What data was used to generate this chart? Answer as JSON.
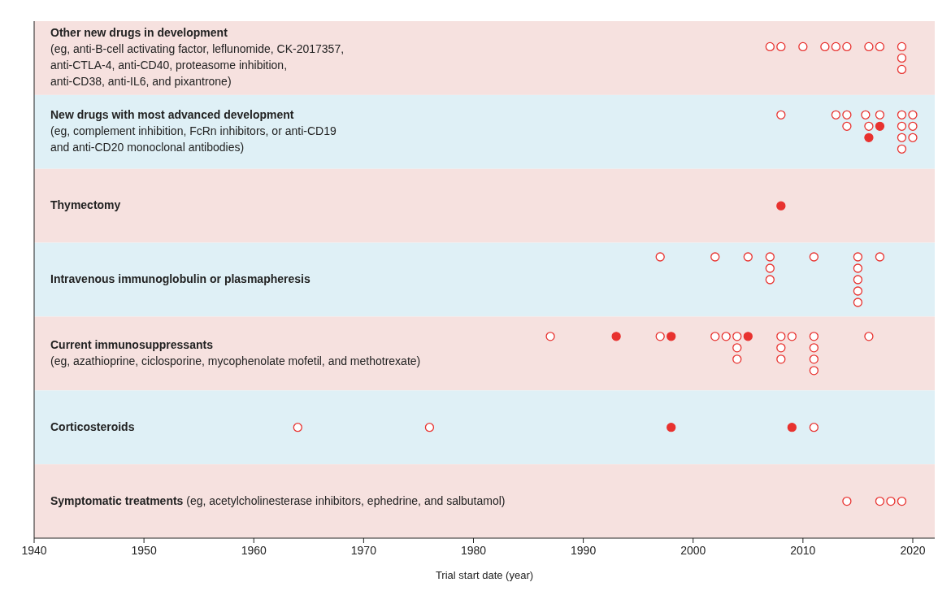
{
  "chart_data": {
    "type": "scatter",
    "orientation": "horizontal",
    "xlabel": "Trial start date (year)",
    "xlim": [
      1940,
      2022
    ],
    "xticks": [
      1940,
      1950,
      1960,
      1970,
      1980,
      1990,
      2000,
      2010,
      2020
    ],
    "grid": false,
    "tick_labels": "x",
    "marker": "circle",
    "categories": [
      "Other new drugs in development\n(eg, anti-B-cell activating factor, leflunomide, CK-2017357,\nanti-CTLA-4, anti-CD40, proteasome inhibition,\nanti-CD38, anti-IL6, and pixantrone)",
      "New drugs with most advanced development\n(eg, complement inhibition, FcRn inhibitors, or anti-CD19\nand anti-CD20 monoclonal antibodies)",
      "Thymectomy",
      "Intravenous immunoglobulin or plasmapheresis",
      "Current immunosuppressants\n(eg, azathioprine, ciclosporine, mycophenolate mofetil, and methotrexate)",
      "Corticosteroids",
      "Symptomatic treatments (eg, acetylcholinesterase inhibitors, ephedrine, and salbutamol)"
    ],
    "bands": [
      {
        "axis": "y",
        "from": "Other new drugs in development\n(eg, anti-B-cell activating factor, leflunomide, CK-2017357,\nanti-CTLA-4, anti-CD40, proteasome inhibition,\nanti-CD38, anti-IL6, and pixantrone)",
        "to": "Other new drugs in development\n(eg, anti-B-cell activating factor, leflunomide, CK-2017357,\nanti-CTLA-4, anti-CD40, proteasome inhibition,\nanti-CD38, anti-IL6, and pixantrone)",
        "color": "#f6e1df"
      },
      {
        "axis": "y",
        "from": "New drugs with most advanced development\n(eg, complement inhibition, FcRn inhibitors, or anti-CD19\nand anti-CD20 monoclonal antibodies)",
        "to": "New drugs with most advanced development\n(eg, complement inhibition, FcRn inhibitors, or anti-CD19\nand anti-CD20 monoclonal antibodies)",
        "color": "#dff0f6"
      },
      {
        "axis": "y",
        "from": "Thymectomy",
        "to": "Thymectomy",
        "color": "#f6e1df"
      },
      {
        "axis": "y",
        "from": "Intravenous immunoglobulin or plasmapheresis",
        "to": "Intravenous immunoglobulin or plasmapheresis",
        "color": "#dff0f6"
      },
      {
        "axis": "y",
        "from": "Current immunosuppressants\n(eg, azathioprine, ciclosporine, mycophenolate mofetil, and methotrexate)",
        "to": "Current immunosuppressants\n(eg, azathioprine, ciclosporine, mycophenolate mofetil, and methotrexate)",
        "color": "#f6e1df"
      },
      {
        "axis": "y",
        "from": "Corticosteroids",
        "to": "Corticosteroids",
        "color": "#dff0f6"
      },
      {
        "axis": "y",
        "from": "Symptomatic treatments (eg, acetylcholinesterase inhibitors, ephedrine, and salbutamol)",
        "to": "Symptomatic treatments (eg, acetylcholinesterase inhibitors, ephedrine, and salbutamol)",
        "color": "#f6e1df"
      }
    ],
    "series": [
      {
        "color": "#e8322f",
        "x": [
          "Other new drugs in development\n(eg, anti-B-cell activating factor, leflunomide, CK-2017357,\nanti-CTLA-4, anti-CD40, proteasome inhibition,\nanti-CD38, anti-IL6, and pixantrone)",
          "Other new drugs in development\n(eg, anti-B-cell activating factor, leflunomide, CK-2017357,\nanti-CTLA-4, anti-CD40, proteasome inhibition,\nanti-CD38, anti-IL6, and pixantrone)",
          "Other new drugs in development\n(eg, anti-B-cell activating factor, leflunomide, CK-2017357,\nanti-CTLA-4, anti-CD40, proteasome inhibition,\nanti-CD38, anti-IL6, and pixantrone)",
          "Other new drugs in development\n(eg, anti-B-cell activating factor, leflunomide, CK-2017357,\nanti-CTLA-4, anti-CD40, proteasome inhibition,\nanti-CD38, anti-IL6, and pixantrone)",
          "Other new drugs in development\n(eg, anti-B-cell activating factor, leflunomide, CK-2017357,\nanti-CTLA-4, anti-CD40, proteasome inhibition,\nanti-CD38, anti-IL6, and pixantrone)",
          "Other new drugs in development\n(eg, anti-B-cell activating factor, leflunomide, CK-2017357,\nanti-CTLA-4, anti-CD40, proteasome inhibition,\nanti-CD38, anti-IL6, and pixantrone)",
          "Other new drugs in development\n(eg, anti-B-cell activating factor, leflunomide, CK-2017357,\nanti-CTLA-4, anti-CD40, proteasome inhibition,\nanti-CD38, anti-IL6, and pixantrone)",
          "Other new drugs in development\n(eg, anti-B-cell activating factor, leflunomide, CK-2017357,\nanti-CTLA-4, anti-CD40, proteasome inhibition,\nanti-CD38, anti-IL6, and pixantrone)",
          "Other new drugs in development\n(eg, anti-B-cell activating factor, leflunomide, CK-2017357,\nanti-CTLA-4, anti-CD40, proteasome inhibition,\nanti-CD38, anti-IL6, and pixantrone)",
          "Other new drugs in development\n(eg, anti-B-cell activating factor, leflunomide, CK-2017357,\nanti-CTLA-4, anti-CD40, proteasome inhibition,\nanti-CD38, anti-IL6, and pixantrone)",
          "Other new drugs in development\n(eg, anti-B-cell activating factor, leflunomide, CK-2017357,\nanti-CTLA-4, anti-CD40, proteasome inhibition,\nanti-CD38, anti-IL6, and pixantrone)",
          "New drugs with most advanced development\n(eg, complement inhibition, FcRn inhibitors, or anti-CD19\nand anti-CD20 monoclonal antibodies)",
          "New drugs with most advanced development\n(eg, complement inhibition, FcRn inhibitors, or anti-CD19\nand anti-CD20 monoclonal antibodies)",
          "New drugs with most advanced development\n(eg, complement inhibition, FcRn inhibitors, or anti-CD19\nand anti-CD20 monoclonal antibodies)",
          "New drugs with most advanced development\n(eg, complement inhibition, FcRn inhibitors, or anti-CD19\nand anti-CD20 monoclonal antibodies)",
          "New drugs with most advanced development\n(eg, complement inhibition, FcRn inhibitors, or anti-CD19\nand anti-CD20 monoclonal antibodies)",
          "New drugs with most advanced development\n(eg, complement inhibition, FcRn inhibitors, or anti-CD19\nand anti-CD20 monoclonal antibodies)",
          "New drugs with most advanced development\n(eg, complement inhibition, FcRn inhibitors, or anti-CD19\nand anti-CD20 monoclonal antibodies)",
          "New drugs with most advanced development\n(eg, complement inhibition, FcRn inhibitors, or anti-CD19\nand anti-CD20 monoclonal antibodies)",
          "New drugs with most advanced development\n(eg, complement inhibition, FcRn inhibitors, or anti-CD19\nand anti-CD20 monoclonal antibodies)",
          "New drugs with most advanced development\n(eg, complement inhibition, FcRn inhibitors, or anti-CD19\nand anti-CD20 monoclonal antibodies)",
          "New drugs with most advanced development\n(eg, complement inhibition, FcRn inhibitors, or anti-CD19\nand anti-CD20 monoclonal antibodies)",
          "New drugs with most advanced development\n(eg, complement inhibition, FcRn inhibitors, or anti-CD19\nand anti-CD20 monoclonal antibodies)",
          "New drugs with most advanced development\n(eg, complement inhibition, FcRn inhibitors, or anti-CD19\nand anti-CD20 monoclonal antibodies)",
          "New drugs with most advanced development\n(eg, complement inhibition, FcRn inhibitors, or anti-CD19\nand anti-CD20 monoclonal antibodies)",
          "New drugs with most advanced development\n(eg, complement inhibition, FcRn inhibitors, or anti-CD19\nand anti-CD20 monoclonal antibodies)",
          "New drugs with most advanced development\n(eg, complement inhibition, FcRn inhibitors, or anti-CD19\nand anti-CD20 monoclonal antibodies)",
          "Thymectomy",
          "Intravenous immunoglobulin or plasmapheresis",
          "Intravenous immunoglobulin or plasmapheresis",
          "Intravenous immunoglobulin or plasmapheresis",
          "Intravenous immunoglobulin or plasmapheresis",
          "Intravenous immunoglobulin or plasmapheresis",
          "Intravenous immunoglobulin or plasmapheresis",
          "Intravenous immunoglobulin or plasmapheresis",
          "Intravenous immunoglobulin or plasmapheresis",
          "Intravenous immunoglobulin or plasmapheresis",
          "Intravenous immunoglobulin or plasmapheresis",
          "Intravenous immunoglobulin or plasmapheresis",
          "Intravenous immunoglobulin or plasmapheresis",
          "Intravenous immunoglobulin or plasmapheresis",
          "Current immunosuppressants\n(eg, azathioprine, ciclosporine, mycophenolate mofetil, and methotrexate)",
          "Current immunosuppressants\n(eg, azathioprine, ciclosporine, mycophenolate mofetil, and methotrexate)",
          "Current immunosuppressants\n(eg, azathioprine, ciclosporine, mycophenolate mofetil, and methotrexate)",
          "Current immunosuppressants\n(eg, azathioprine, ciclosporine, mycophenolate mofetil, and methotrexate)",
          "Current immunosuppressants\n(eg, azathioprine, ciclosporine, mycophenolate mofetil, and methotrexate)",
          "Current immunosuppressants\n(eg, azathioprine, ciclosporine, mycophenolate mofetil, and methotrexate)",
          "Current immunosuppressants\n(eg, azathioprine, ciclosporine, mycophenolate mofetil, and methotrexate)",
          "Current immunosuppressants\n(eg, azathioprine, ciclosporine, mycophenolate mofetil, and methotrexate)",
          "Current immunosuppressants\n(eg, azathioprine, ciclosporine, mycophenolate mofetil, and methotrexate)",
          "Current immunosuppressants\n(eg, azathioprine, ciclosporine, mycophenolate mofetil, and methotrexate)",
          "Current immunosuppressants\n(eg, azathioprine, ciclosporine, mycophenolate mofetil, and methotrexate)",
          "Current immunosuppressants\n(eg, azathioprine, ciclosporine, mycophenolate mofetil, and methotrexate)",
          "Current immunosuppressants\n(eg, azathioprine, ciclosporine, mycophenolate mofetil, and methotrexate)",
          "Current immunosuppressants\n(eg, azathioprine, ciclosporine, mycophenolate mofetil, and methotrexate)",
          "Current immunosuppressants\n(eg, azathioprine, ciclosporine, mycophenolate mofetil, and methotrexate)",
          "Current immunosuppressants\n(eg, azathioprine, ciclosporine, mycophenolate mofetil, and methotrexate)",
          "Current immunosuppressants\n(eg, azathioprine, ciclosporine, mycophenolate mofetil, and methotrexate)",
          "Current immunosuppressants\n(eg, azathioprine, ciclosporine, mycophenolate mofetil, and methotrexate)",
          "Current immunosuppressants\n(eg, azathioprine, ciclosporine, mycophenolate mofetil, and methotrexate)",
          "Corticosteroids",
          "Corticosteroids",
          "Corticosteroids",
          "Corticosteroids",
          "Corticosteroids",
          "Symptomatic treatments (eg, acetylcholinesterase inhibitors, ephedrine, and salbutamol)",
          "Symptomatic treatments (eg, acetylcholinesterase inhibitors, ephedrine, and salbutamol)",
          "Symptomatic treatments (eg, acetylcholinesterase inhibitors, ephedrine, and salbutamol)",
          "Symptomatic treatments (eg, acetylcholinesterase inhibitors, ephedrine, and salbutamol)"
        ],
        "values": [
          2008,
          2016,
          2019,
          2019,
          2014,
          2019,
          2017,
          2007,
          2010,
          2012,
          2013,
          2015.7,
          2014,
          2016,
          2019,
          2020,
          2016,
          2017,
          2019,
          2020,
          2008,
          2013,
          2014,
          2017,
          2019,
          2019,
          2020,
          2008,
          2007,
          2015,
          1997,
          2002,
          2005,
          2007,
          2007,
          2011,
          2015,
          2015,
          2017,
          2015,
          2015,
          2002,
          2011,
          2011,
          2016,
          2011,
          2011,
          2005,
          1987,
          1993,
          2004,
          2008,
          2003,
          2004,
          2004,
          2008,
          2008,
          2009,
          1997,
          1998,
          1964,
          1976,
          1998,
          2009,
          2011,
          2014,
          2017,
          2018,
          2019
        ],
        "colors": [
          "#ffffff",
          "#ffffff",
          "#ffffff",
          "#ffffff",
          "#ffffff",
          "#ffffff",
          "#ffffff",
          "#ffffff",
          "#ffffff",
          "#ffffff",
          "#ffffff",
          "#ffffff",
          "#ffffff",
          "#ffffff",
          "#ffffff",
          "#ffffff",
          "#e8322f",
          "#ffffff",
          "#ffffff",
          "#ffffff",
          "#ffffff",
          "#ffffff",
          "#ffffff",
          "#e8322f",
          "#ffffff",
          "#ffffff",
          "#ffffff",
          "#e8322f",
          "#ffffff",
          "#ffffff",
          "#ffffff",
          "#ffffff",
          "#ffffff",
          "#ffffff",
          "#ffffff",
          "#ffffff",
          "#ffffff",
          "#ffffff",
          "#ffffff",
          "#ffffff",
          "#ffffff",
          "#ffffff",
          "#ffffff",
          "#ffffff",
          "#ffffff",
          "#ffffff",
          "#ffffff",
          "#e8322f",
          "#ffffff",
          "#e8322f",
          "#ffffff",
          "#ffffff",
          "#ffffff",
          "#ffffff",
          "#ffffff",
          "#ffffff",
          "#ffffff",
          "#ffffff",
          "#ffffff",
          "#e8322f",
          "#ffffff",
          "#ffffff",
          "#e8322f",
          "#e8322f",
          "#ffffff",
          "#ffffff",
          "#ffffff",
          "#ffffff",
          "#ffffff"
        ]
      }
    ]
  }
}
